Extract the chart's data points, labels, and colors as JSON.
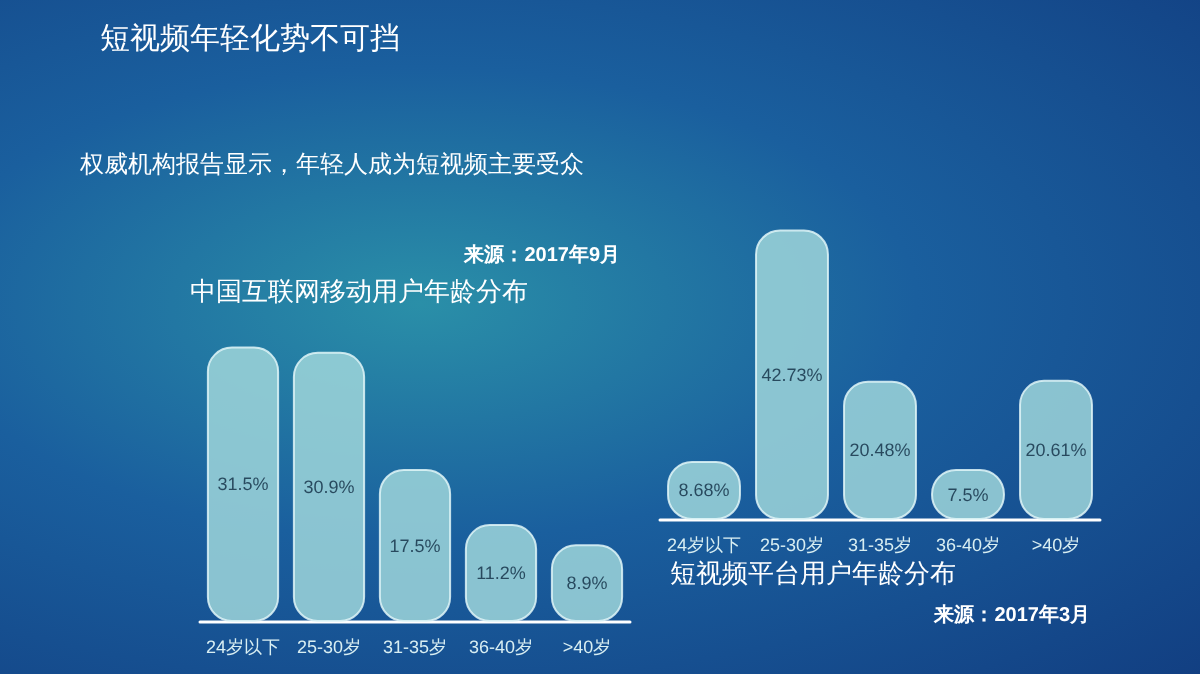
{
  "chart_data": [
    {
      "type": "other",
      "title": "短视频年轻化势不可挡",
      "subtitle": "权威机构报告显示，年轻人成为短视频主要受众"
    },
    {
      "type": "bar",
      "title": "中国互联网移动用户年龄分布",
      "annotations": [
        "来源：2017年9月"
      ],
      "categories": [
        "24岁以下",
        "25-30岁",
        "31-35岁",
        "36-40岁",
        ">40岁"
      ],
      "values": [
        31.5,
        30.9,
        17.5,
        11.2,
        8.9
      ],
      "value_labels": [
        "31.5%",
        "30.9%",
        "17.5%",
        "11.2%",
        "8.9%"
      ],
      "color": "#9fd6da"
    },
    {
      "type": "bar",
      "title": "短视频平台用户年龄分布",
      "annotations": [
        "来源：2017年3月"
      ],
      "categories": [
        "24岁以下",
        "25-30岁",
        "31-35岁",
        "36-40岁",
        ">40岁"
      ],
      "values": [
        8.68,
        42.73,
        20.48,
        7.5,
        20.61
      ],
      "value_labels": [
        "8.68%",
        "42.73%",
        "20.48%",
        "7.5%",
        "20.61%"
      ],
      "color": "#9fd6da"
    }
  ]
}
